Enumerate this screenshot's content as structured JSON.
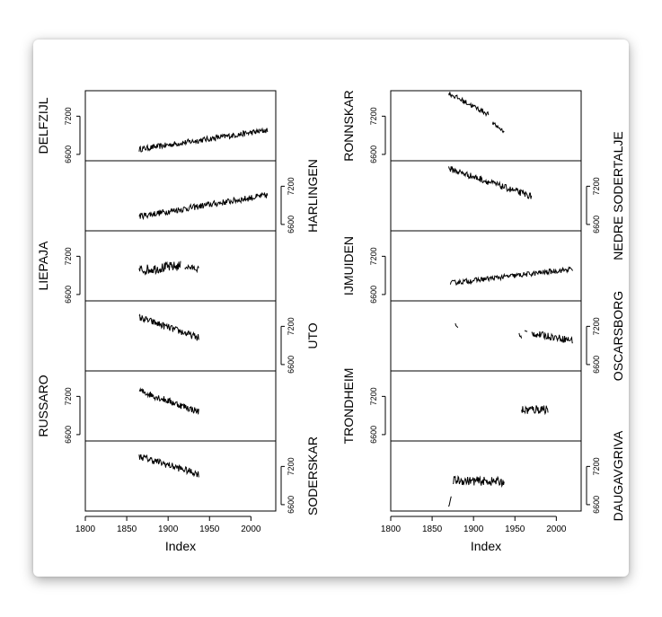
{
  "chart_data": {
    "type": "line",
    "description_axes": "Two columns of stacked time-series panels sharing an x axis",
    "x_label": "Index",
    "x_range": [
      1800,
      2030
    ],
    "x_ticks": [
      1800,
      1850,
      1900,
      1950,
      2000
    ],
    "y_range": [
      6500,
      7600
    ],
    "y_ticks": [
      6600,
      7200
    ],
    "columns": [
      {
        "panels": [
          {
            "name": "DELFZIJL",
            "side": "left",
            "series": [
              {
                "start": 1865,
                "end": 2020,
                "y0": 6680,
                "y1": 6980,
                "noise": 45
              }
            ]
          },
          {
            "name": "HARLINGEN",
            "side": "right",
            "series": [
              {
                "start": 1865,
                "end": 2020,
                "y0": 6730,
                "y1": 7060,
                "noise": 50
              }
            ]
          },
          {
            "name": "LIEPAJA",
            "side": "left",
            "series": [
              {
                "start": 1865,
                "end": 1915,
                "y0": 6980,
                "y1": 7050,
                "noise": 80
              },
              {
                "start": 1920,
                "end": 1937,
                "y0": 7040,
                "y1": 7000,
                "noise": 45
              }
            ]
          },
          {
            "name": "UTO",
            "side": "right",
            "series": [
              {
                "start": 1865,
                "end": 1937,
                "y0": 7340,
                "y1": 7020,
                "noise": 55
              }
            ]
          },
          {
            "name": "RUSSARO",
            "side": "left",
            "series": [
              {
                "start": 1865,
                "end": 1937,
                "y0": 7290,
                "y1": 6960,
                "noise": 55
              }
            ]
          },
          {
            "name": "SODERSKAR",
            "side": "right",
            "series": [
              {
                "start": 1865,
                "end": 1937,
                "y0": 7360,
                "y1": 7080,
                "noise": 55
              }
            ]
          }
        ]
      },
      {
        "panels": [
          {
            "name": "RONNSKAR",
            "side": "left",
            "series": [
              {
                "start": 1870,
                "end": 1918,
                "y0": 7560,
                "y1": 7230,
                "noise": 40
              },
              {
                "start": 1923,
                "end": 1937,
                "y0": 7090,
                "y1": 6960,
                "noise": 30
              }
            ]
          },
          {
            "name": "NEDRE SODERTALJE",
            "side": "right",
            "series": [
              {
                "start": 1870,
                "end": 1970,
                "y0": 7480,
                "y1": 7040,
                "noise": 50
              }
            ]
          },
          {
            "name": "IJMUIDEN",
            "side": "left",
            "series": [
              {
                "start": 1872,
                "end": 2020,
                "y0": 6780,
                "y1": 7000,
                "noise": 40
              }
            ]
          },
          {
            "name": "OSCARSBORG",
            "side": "right",
            "series": [
              {
                "start": 1878,
                "end": 1881,
                "y0": 7230,
                "y1": 7180,
                "noise": 20
              },
              {
                "start": 1955,
                "end": 1958,
                "y0": 7080,
                "y1": 7020,
                "noise": 20
              },
              {
                "start": 1962,
                "end": 1965,
                "y0": 7130,
                "y1": 7110,
                "noise": 15
              },
              {
                "start": 1970,
                "end": 2020,
                "y0": 7090,
                "y1": 6980,
                "noise": 55
              }
            ]
          },
          {
            "name": "TRONDHEIM",
            "side": "left",
            "series": [
              {
                "start": 1958,
                "end": 1990,
                "y0": 6980,
                "y1": 7010,
                "noise": 80
              }
            ]
          },
          {
            "name": "DAUGAVGRIVA",
            "side": "right",
            "series": [
              {
                "start": 1870,
                "end": 1873,
                "y0": 6560,
                "y1": 6720,
                "noise": 10
              },
              {
                "start": 1875,
                "end": 1937,
                "y0": 6980,
                "y1": 6960,
                "noise": 70
              }
            ]
          }
        ]
      }
    ]
  }
}
